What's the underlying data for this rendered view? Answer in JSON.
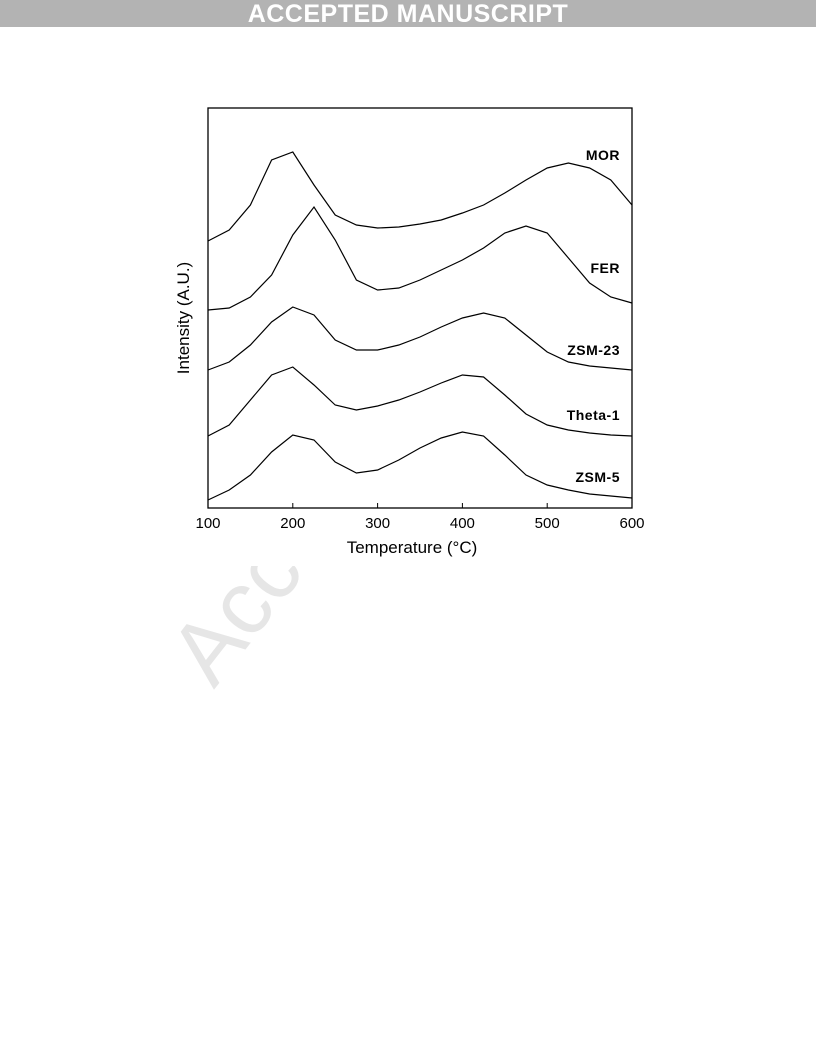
{
  "header": {
    "banner": "ACCEPTED MANUSCRIPT"
  },
  "watermark": "Accepted",
  "chart_data": {
    "type": "line",
    "x_label": "Temperature (°C)",
    "y_label": "Intensity (A.U.)",
    "x": [
      100,
      125,
      150,
      175,
      200,
      225,
      250,
      275,
      300,
      325,
      350,
      375,
      400,
      425,
      450,
      475,
      500,
      525,
      550,
      575,
      600
    ],
    "xlim": [
      100,
      600
    ],
    "xticks": [
      100,
      200,
      300,
      400,
      500,
      600
    ],
    "ylim": [
      0,
      100
    ],
    "series": [
      {
        "name": "MOR",
        "color": "#000000",
        "values": [
          66.75,
          69.5,
          75.75,
          87,
          89,
          80.75,
          73.25,
          70.75,
          70,
          70.25,
          71,
          72,
          73.75,
          75.75,
          78.75,
          82,
          85,
          86.25,
          85,
          82,
          75.75
        ]
      },
      {
        "name": "FER",
        "color": "#000000",
        "values": [
          49.5,
          50,
          52.75,
          58.25,
          68.25,
          75.25,
          67,
          57,
          54.5,
          55,
          57,
          59.5,
          62,
          65,
          68.75,
          70.5,
          68.75,
          62.5,
          56.25,
          52.75,
          51.25
        ]
      },
      {
        "name": "ZSM-23",
        "color": "#000000",
        "values": [
          34.5,
          36.5,
          40.75,
          46.5,
          50.25,
          48.25,
          42,
          39.5,
          39.5,
          40.75,
          42.75,
          45.25,
          47.5,
          48.75,
          47.5,
          43.25,
          39,
          36.5,
          35.5,
          35,
          34.5
        ]
      },
      {
        "name": "Theta-1",
        "color": "#000000",
        "values": [
          18,
          20.75,
          27,
          33.25,
          35.25,
          30.75,
          25.75,
          24.5,
          25.5,
          27,
          29,
          31.25,
          33.25,
          32.75,
          28.25,
          23.5,
          20.75,
          19.5,
          18.75,
          18.25,
          18
        ]
      },
      {
        "name": "ZSM-5",
        "color": "#000000",
        "values": [
          2,
          4.5,
          8.25,
          14,
          18.25,
          17,
          11.5,
          8.75,
          9.5,
          12,
          15,
          17.5,
          19,
          18,
          13.25,
          8.25,
          5.75,
          4.5,
          3.5,
          3,
          2.5
        ]
      }
    ]
  }
}
